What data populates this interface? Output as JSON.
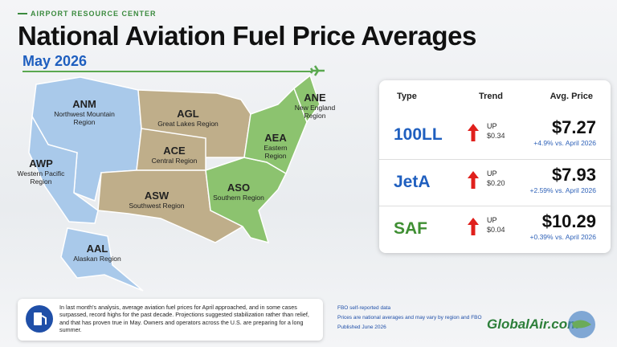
{
  "header": {
    "kicker": "AIRPORT RESOURCE CENTER",
    "title": "National Aviation Fuel Price Averages",
    "subtitle": "May 2026"
  },
  "regions": [
    {
      "code": "ANM",
      "name": "Northwest Mountain Region"
    },
    {
      "code": "AWP",
      "name": "Western Pacific Region"
    },
    {
      "code": "AGL",
      "name": "Great Lakes Region"
    },
    {
      "code": "ACE",
      "name": "Central Region"
    },
    {
      "code": "ASW",
      "name": "Southwest Region"
    },
    {
      "code": "ASO",
      "name": "Southern Region"
    },
    {
      "code": "AEA",
      "name": "Eastern Region"
    },
    {
      "code": "ANE",
      "name": "New England Region"
    },
    {
      "code": "AAL",
      "name": "Alaskan Region"
    }
  ],
  "table": {
    "columns": [
      "Type",
      "Trend",
      "Avg. Price"
    ],
    "rows": [
      {
        "type": "100LL",
        "direction": "UP",
        "change": "$0.34",
        "price": "$7.27",
        "comparison": "+4.9% vs. April 2026"
      },
      {
        "type": "JetA",
        "direction": "UP",
        "change": "$0.20",
        "price": "$7.93",
        "comparison": "+2.59% vs. April 2026"
      },
      {
        "type": "SAF",
        "direction": "UP",
        "change": "$0.04",
        "price": "$10.29",
        "comparison": "+0.39% vs. April 2026"
      }
    ]
  },
  "note": "In last month's analysis, average aviation fuel prices for April approached, and in some cases surpassed, record highs for the past decade. Projections suggested stabilization rather than relief, and that has proven true in May. Owners and operators across the U.S. are preparing for a long summer.",
  "footer": {
    "lines": [
      "FBO self-reported data",
      "Prices are national averages and may vary by region and FBO",
      "Published June 2026"
    ],
    "logo": "GlobalAir.com"
  }
}
